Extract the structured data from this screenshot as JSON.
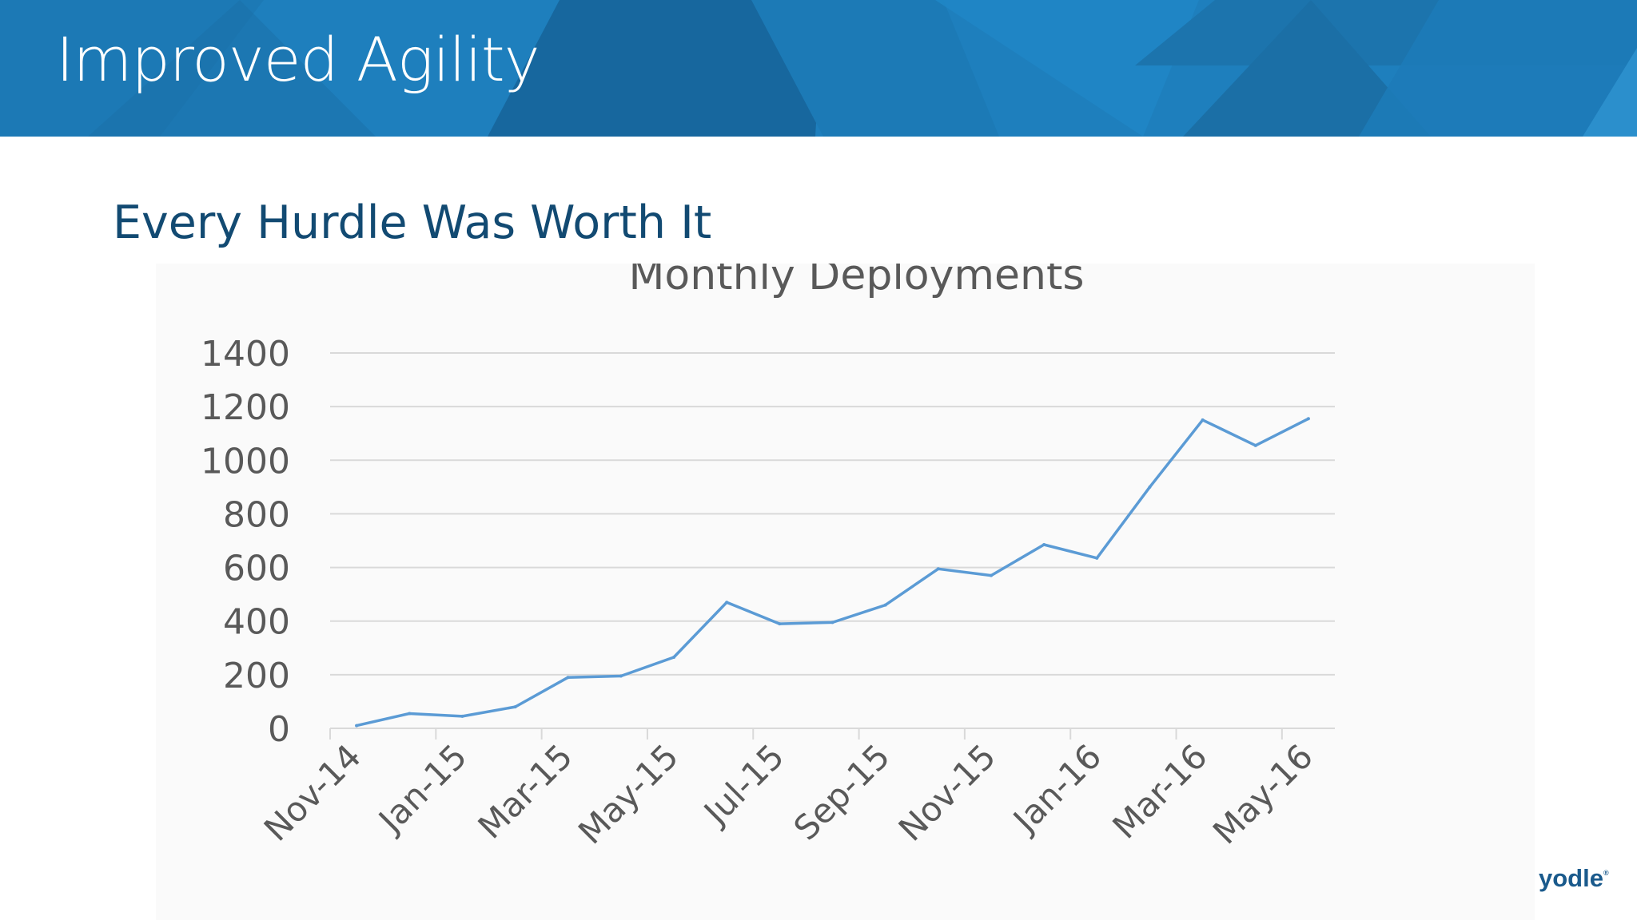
{
  "slide": {
    "title": "Improved Agility",
    "subtitle": "Every Hurdle Was Worth It",
    "logo": "yodle",
    "logo_mark": "®"
  },
  "colors": {
    "header": "#1e7fbd",
    "subtitle": "#124a72",
    "series_line": "#5b9bd5",
    "gridline": "#d9d9d9",
    "axis_text": "#595959"
  },
  "chart_data": {
    "type": "line",
    "title": "Monthly Deployments",
    "xlabel": "",
    "ylabel": "",
    "ylim": [
      0,
      1400
    ],
    "yticks": [
      0,
      200,
      400,
      600,
      800,
      1000,
      1200,
      1400
    ],
    "x": [
      "Nov-14",
      "Dec-14",
      "Jan-15",
      "Feb-15",
      "Mar-15",
      "Apr-15",
      "May-15",
      "Jun-15",
      "Jul-15",
      "Aug-15",
      "Sep-15",
      "Oct-15",
      "Nov-15",
      "Dec-15",
      "Jan-16",
      "Feb-16",
      "Mar-16",
      "Apr-16",
      "May-16"
    ],
    "x_tick_labels": [
      "Nov-14",
      "Jan-15",
      "Mar-15",
      "May-15",
      "Jul-15",
      "Sep-15",
      "Nov-15",
      "Jan-16",
      "Mar-16",
      "May-16"
    ],
    "series": [
      {
        "values": [
          10,
          55,
          45,
          80,
          190,
          195,
          265,
          470,
          390,
          395,
          460,
          595,
          570,
          685,
          635,
          900,
          1150,
          1055,
          1155
        ]
      }
    ],
    "grid": true,
    "legend": "none"
  }
}
